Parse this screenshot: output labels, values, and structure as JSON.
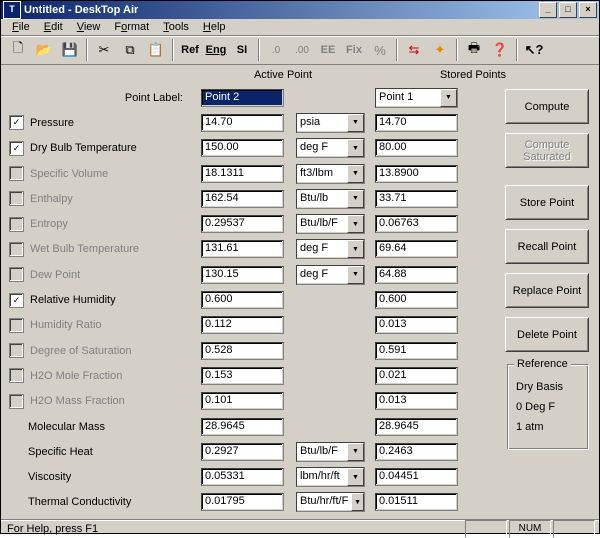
{
  "title": "Untitled - DeskTop Air",
  "menu": {
    "file": "File",
    "edit": "Edit",
    "view": "View",
    "format": "Format",
    "tools": "Tools",
    "help": "Help"
  },
  "toolbar": {
    "ref": "Ref",
    "eng": "Eng",
    "si": "SI",
    "ee": "EE",
    "fix": "Fix"
  },
  "headers": {
    "active": "Active Point",
    "stored": "Stored Points"
  },
  "action": {
    "compute": "Compute",
    "compute_sat": "Compute\nSaturated",
    "store": "Store Point",
    "recall": "Recall Point",
    "replace": "Replace Point",
    "delete": "Delete Point"
  },
  "reference": {
    "legend": "Reference",
    "l1": "Dry Basis",
    "l2": "0 Deg F",
    "l3": "1 atm"
  },
  "status": {
    "help": "For Help, press F1",
    "num": "NUM"
  },
  "stored_combo": "Point 1",
  "rows": [
    {
      "id": "point-label",
      "chk": null,
      "label": "Point Label:",
      "active": "Point 2",
      "active_sel": true,
      "unit": null,
      "stored_combo": true
    },
    {
      "id": "pressure",
      "chk": true,
      "label": "Pressure",
      "active": "14.70",
      "unit": "psia",
      "stored": "14.70"
    },
    {
      "id": "dry-bulb",
      "chk": true,
      "label": "Dry Bulb Temperature",
      "active": "150.00",
      "unit": "deg F",
      "stored": "80.00"
    },
    {
      "id": "specific-volume",
      "chk": false,
      "disabled": true,
      "label": "Specific Volume",
      "active": "18.1311",
      "unit": "ft3/lbm",
      "stored": "13.8900"
    },
    {
      "id": "enthalpy",
      "chk": false,
      "disabled": true,
      "label": "Enthalpy",
      "active": "162.54",
      "unit": "Btu/lb",
      "stored": "33.71"
    },
    {
      "id": "entropy",
      "chk": false,
      "disabled": true,
      "label": "Entropy",
      "active": "0.29537",
      "unit": "Btu/lb/F",
      "stored": "0.06763"
    },
    {
      "id": "wet-bulb",
      "chk": false,
      "disabled": true,
      "label": "Wet Bulb Temperature",
      "active": "131.61",
      "unit": "deg F",
      "stored": "69.64"
    },
    {
      "id": "dew-point",
      "chk": false,
      "disabled": true,
      "label": "Dew Point",
      "active": "130.15",
      "unit": "deg F",
      "stored": "64.88"
    },
    {
      "id": "rel-humidity",
      "chk": true,
      "label": "Relative Humidity",
      "active": "0.600",
      "unit": "",
      "stored": "0.600"
    },
    {
      "id": "humidity-ratio",
      "chk": false,
      "disabled": true,
      "label": "Humidity Ratio",
      "active": "0.112",
      "unit": "",
      "stored": "0.013"
    },
    {
      "id": "deg-saturation",
      "chk": false,
      "disabled": true,
      "label": "Degree of Saturation",
      "active": "0.528",
      "unit": "",
      "stored": "0.591"
    },
    {
      "id": "h2o-mole",
      "chk": false,
      "disabled": true,
      "label": "H2O Mole Fraction",
      "active": "0.153",
      "unit": "",
      "stored": "0.021"
    },
    {
      "id": "h2o-mass",
      "chk": false,
      "disabled": true,
      "label": "H2O Mass Fraction",
      "active": "0.101",
      "unit": "",
      "stored": "0.013"
    },
    {
      "id": "mol-mass",
      "chk": null,
      "label": "Molecular Mass",
      "active": "28.9645",
      "unit": "",
      "stored": "28.9645"
    },
    {
      "id": "spec-heat",
      "chk": null,
      "label": "Specific Heat",
      "active": "0.2927",
      "unit": "Btu/lb/F",
      "stored": "0.2463"
    },
    {
      "id": "viscosity",
      "chk": null,
      "label": "Viscosity",
      "active": "0.05331",
      "unit": "lbm/hr/ft",
      "stored": "0.04451"
    },
    {
      "id": "thermal-cond",
      "chk": null,
      "label": "Thermal Conductivity",
      "active": "0.01795",
      "unit": "Btu/hr/ft/F",
      "stored": "0.01511"
    }
  ]
}
